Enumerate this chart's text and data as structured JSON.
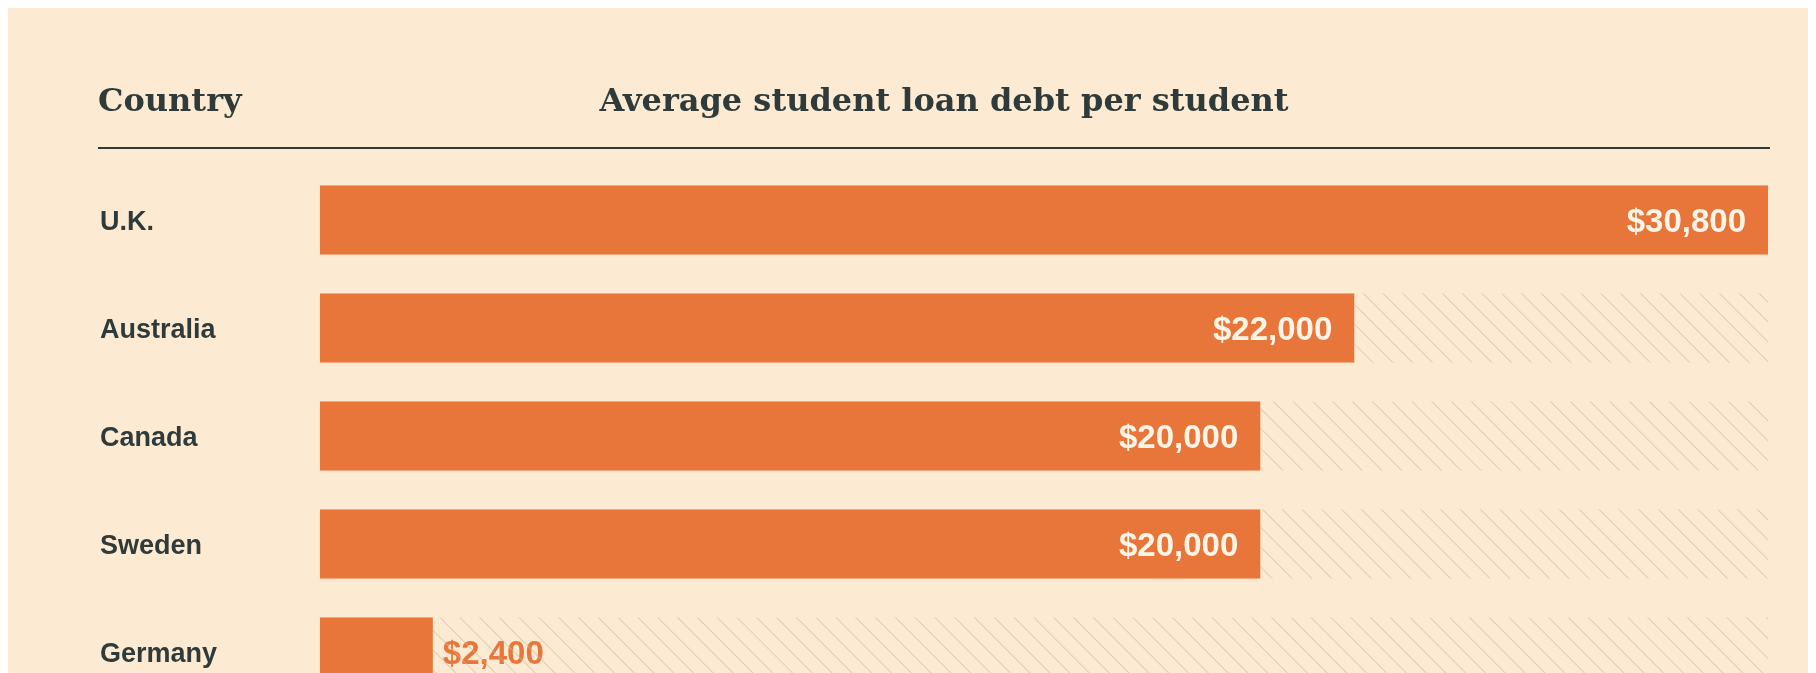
{
  "chart_data": {
    "type": "bar",
    "orientation": "horizontal",
    "stacked": true,
    "title": "Average student loan debt per student",
    "ylabel": "Country",
    "categories": [
      "U.K.",
      "Australia",
      "Canada",
      "Sweden",
      "Germany"
    ],
    "series": [
      {
        "color": "#e8763a",
        "values": [
          30800,
          22000,
          20000,
          20000,
          2400
        ],
        "value_labels": [
          "$30,800",
          "$22,000",
          "$20,000",
          "$20,000",
          "$2,400"
        ]
      },
      {
        "color": "#c9b9a3",
        "values": [
          0,
          8800,
          10800,
          10800,
          28400
        ]
      }
    ]
  }
}
